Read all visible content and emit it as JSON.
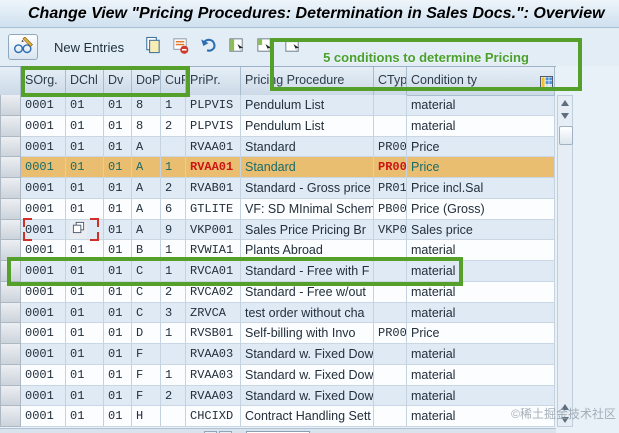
{
  "title": "Change View \"Pricing Procedures: Determination in Sales Docs.\": Overview",
  "toolbar": {
    "new_entries_label": "New Entries",
    "icons": [
      "display-change-toggle-icon",
      "copy-as-icon",
      "delete-line-icon",
      "undo-icon",
      "select-all-icon",
      "select-block-icon",
      "deselect-all-icon"
    ]
  },
  "annotation": {
    "note": "5  conditions to determine Pricing"
  },
  "table": {
    "columns": [
      "SOrg.",
      "DChl",
      "Dv",
      "DoPr",
      "CuPP",
      "PriPr.",
      "Pricing Procedure",
      "CTyp",
      "Condition ty"
    ],
    "rows": [
      {
        "sorg": "0001",
        "dchl": "01",
        "dv": "01",
        "dopr": "8",
        "cupp": "1",
        "pripr": "PLPVIS",
        "proc": "Pendulum List",
        "ctyp": "",
        "cond": "material"
      },
      {
        "sorg": "0001",
        "dchl": "01",
        "dv": "01",
        "dopr": "8",
        "cupp": "2",
        "pripr": "PLPVIS",
        "proc": "Pendulum List",
        "ctyp": "",
        "cond": "material"
      },
      {
        "sorg": "0001",
        "dchl": "01",
        "dv": "01",
        "dopr": "A",
        "cupp": "",
        "pripr": "RVAA01",
        "proc": "Standard",
        "ctyp": "PR00",
        "cond": "Price"
      },
      {
        "sorg": "0001",
        "dchl": "01",
        "dv": "01",
        "dopr": "A",
        "cupp": "1",
        "pripr": "RVAA01",
        "proc": "Standard",
        "ctyp": "PR00",
        "cond": "Price",
        "selected": true
      },
      {
        "sorg": "0001",
        "dchl": "01",
        "dv": "01",
        "dopr": "A",
        "cupp": "2",
        "pripr": "RVAB01",
        "proc": "Standard - Gross price",
        "ctyp": "PR01",
        "cond": "Price incl.Sal"
      },
      {
        "sorg": "0001",
        "dchl": "01",
        "dv": "01",
        "dopr": "A",
        "cupp": "6",
        "pripr": "GTLITE",
        "proc": "VF: SD MInimal Schema",
        "ctyp": "PB00",
        "cond": "Price (Gross)"
      },
      {
        "sorg": "0001",
        "dchl": "",
        "dv": "01",
        "dopr": "A",
        "cupp": "9",
        "pripr": "VKP001",
        "proc": "Sales Price Pricing Br",
        "ctyp": "VKP0",
        "cond": "Sales price",
        "dchl_icon": true,
        "cursor_brackets": true
      },
      {
        "sorg": "0001",
        "dchl": "01",
        "dv": "01",
        "dopr": "B",
        "cupp": "1",
        "pripr": "RVWIA1",
        "proc": "Plants Abroad",
        "ctyp": "",
        "cond": "material"
      },
      {
        "sorg": "0001",
        "dchl": "01",
        "dv": "01",
        "dopr": "C",
        "cupp": "1",
        "pripr": "RVCA01",
        "proc": "Standard - Free with F",
        "ctyp": "",
        "cond": "material",
        "green_highlight": true
      },
      {
        "sorg": "0001",
        "dchl": "01",
        "dv": "01",
        "dopr": "C",
        "cupp": "2",
        "pripr": "RVCA02",
        "proc": "Standard - Free w/out",
        "ctyp": "",
        "cond": "material"
      },
      {
        "sorg": "0001",
        "dchl": "01",
        "dv": "01",
        "dopr": "C",
        "cupp": "3",
        "pripr": "ZRVCA",
        "proc": "test order without cha",
        "ctyp": "",
        "cond": "material"
      },
      {
        "sorg": "0001",
        "dchl": "01",
        "dv": "01",
        "dopr": "D",
        "cupp": "1",
        "pripr": "RVSB01",
        "proc": "Self-billing with Invo",
        "ctyp": "PR00",
        "cond": "Price"
      },
      {
        "sorg": "0001",
        "dchl": "01",
        "dv": "01",
        "dopr": "F",
        "cupp": "",
        "pripr": "RVAA03",
        "proc": "Standard w. Fixed Down",
        "ctyp": "",
        "cond": "material"
      },
      {
        "sorg": "0001",
        "dchl": "01",
        "dv": "01",
        "dopr": "F",
        "cupp": "1",
        "pripr": "RVAA03",
        "proc": "Standard w. Fixed Down",
        "ctyp": "",
        "cond": "material"
      },
      {
        "sorg": "0001",
        "dchl": "01",
        "dv": "01",
        "dopr": "F",
        "cupp": "2",
        "pripr": "RVAA03",
        "proc": "Standard w. Fixed Down",
        "ctyp": "",
        "cond": "material"
      },
      {
        "sorg": "0001",
        "dchl": "01",
        "dv": "01",
        "dopr": "H",
        "cupp": "",
        "pripr": "CHCIXD",
        "proc": "Contract Handling Sett",
        "ctyp": "",
        "cond": "material"
      }
    ]
  },
  "watermark": "©稀土掘金技术社区",
  "colors": {
    "selected_row_bg": "#eabe70",
    "selected_text": "#186a6a",
    "error_red": "#cc1414",
    "annotation_green": "#55a02b",
    "row_alt_blue": "#dfeaf4"
  }
}
